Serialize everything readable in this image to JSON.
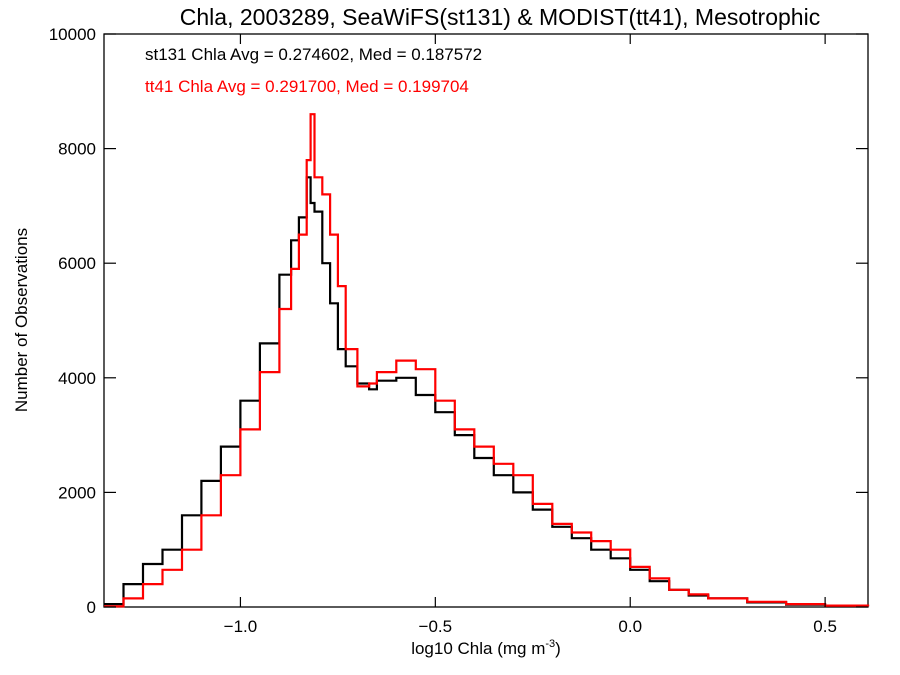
{
  "chart_data": {
    "type": "line",
    "title": "Chla, 2003289, SeaWiFS(st131) & MODIST(tt41), Mesotrophic",
    "xlabel": "log10 Chla (mg m",
    "xlabel_sup": "-3",
    "xlabel_close": ")",
    "ylabel": "Number of Observations",
    "xlim": [
      -1.35,
      0.61
    ],
    "ylim": [
      0,
      10000
    ],
    "x_ticks": [
      -1.0,
      -0.5,
      0.0,
      0.5
    ],
    "x_tick_labels": [
      "−1.0",
      "−0.5",
      "0.0",
      "0.5"
    ],
    "y_ticks": [
      0,
      2000,
      4000,
      6000,
      8000,
      10000
    ],
    "y_tick_labels": [
      "0",
      "2000",
      "4000",
      "6000",
      "8000",
      "10000"
    ],
    "grid": false,
    "legend": "none",
    "annotations": [
      {
        "text": "st131 Chla Avg = 0.274602, Med = 0.187572",
        "color": "#000000"
      },
      {
        "text": "tt41 Chla Avg = 0.291700, Med = 0.199704",
        "color": "#ff0000"
      }
    ],
    "x": [
      -1.35,
      -1.3,
      -1.25,
      -1.2,
      -1.15,
      -1.1,
      -1.05,
      -1.0,
      -0.95,
      -0.9,
      -0.87,
      -0.85,
      -0.83,
      -0.82,
      -0.81,
      -0.79,
      -0.77,
      -0.75,
      -0.73,
      -0.7,
      -0.67,
      -0.65,
      -0.6,
      -0.55,
      -0.5,
      -0.45,
      -0.4,
      -0.35,
      -0.3,
      -0.25,
      -0.2,
      -0.15,
      -0.1,
      -0.05,
      0.0,
      0.05,
      0.1,
      0.15,
      0.2,
      0.3,
      0.4,
      0.5,
      0.61
    ],
    "series": [
      {
        "color": "#000000",
        "values": [
          50,
          400,
          750,
          1000,
          1600,
          2200,
          2800,
          3600,
          4600,
          5800,
          6400,
          6800,
          7500,
          7050,
          6900,
          6000,
          5300,
          4500,
          4200,
          3900,
          3800,
          3950,
          4000,
          3700,
          3400,
          3000,
          2600,
          2300,
          2000,
          1700,
          1400,
          1200,
          1000,
          850,
          650,
          450,
          300,
          200,
          150,
          80,
          40,
          20,
          10
        ]
      },
      {
        "color": "#ff0000",
        "values": [
          10,
          150,
          400,
          650,
          1000,
          1600,
          2300,
          3100,
          4100,
          5200,
          5900,
          6500,
          7800,
          8600,
          7500,
          7200,
          6500,
          5600,
          4500,
          3850,
          3900,
          4100,
          4300,
          4150,
          3600,
          3100,
          2800,
          2500,
          2300,
          1800,
          1450,
          1300,
          1150,
          1000,
          700,
          500,
          300,
          220,
          150,
          90,
          50,
          25,
          10
        ]
      }
    ]
  }
}
